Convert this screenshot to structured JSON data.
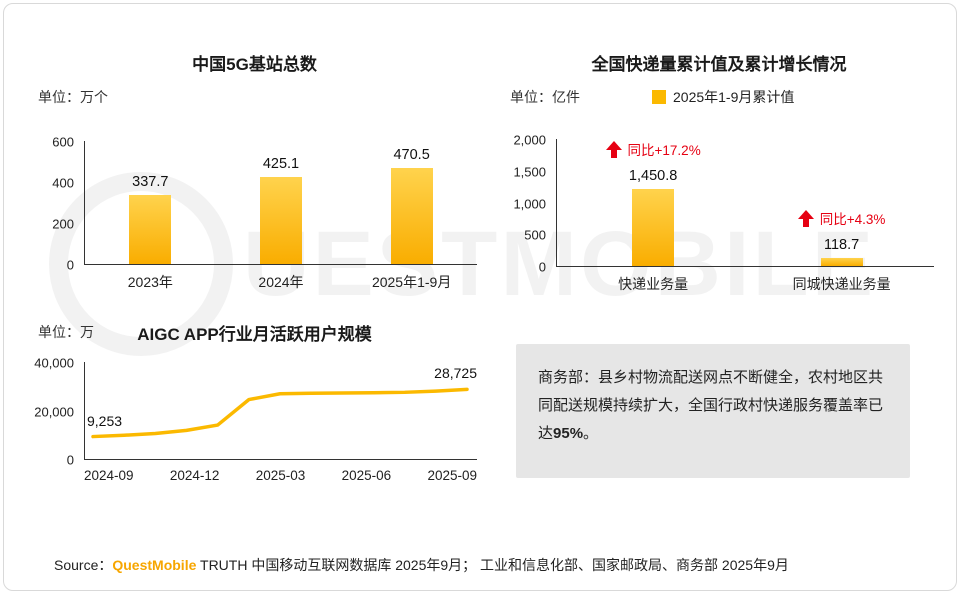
{
  "watermark": {
    "text": "QUESTMOBILE"
  },
  "colors": {
    "accent_yellow": "#FBB900",
    "bar_gradient_top": "#FFD34D",
    "bar_gradient_bottom": "#F9AD00",
    "growth_red": "#E60012",
    "brand_orange": "#F7A600",
    "quote_bg": "#E6E6E6"
  },
  "chart_data": [
    {
      "type": "bar",
      "title": "中国5G基站总数",
      "unit_label": "单位：万个",
      "categories": [
        "2023年",
        "2024年",
        "2025年1-9月"
      ],
      "values": [
        337.7,
        425.1,
        470.5
      ],
      "value_labels": [
        "337.7",
        "425.1",
        "470.5"
      ],
      "ylim": [
        0,
        600
      ],
      "yticks": [
        0,
        200,
        400,
        600
      ],
      "ytick_labels": [
        "0",
        "200",
        "400",
        "600"
      ],
      "grid": false,
      "legend_position": "none"
    },
    {
      "type": "bar",
      "title": "全国快递量累计值及累计增长情况",
      "unit_label": "单位：亿件",
      "legend": [
        {
          "label": "2025年1-9月累计值",
          "color": "#FBB900"
        }
      ],
      "categories": [
        "快递业务量",
        "同城快递业务量"
      ],
      "values": [
        1450.8,
        118.7
      ],
      "value_labels": [
        "1,450.8",
        "118.7"
      ],
      "growth_labels": [
        "同比+17.2%",
        "同比+4.3%"
      ],
      "ylim": [
        0,
        2000
      ],
      "yticks": [
        0,
        500,
        1000,
        1500,
        2000
      ],
      "ytick_labels": [
        "0",
        "500",
        "1,000",
        "1,500",
        "2,000"
      ],
      "grid": false,
      "legend_position": "top"
    },
    {
      "type": "line",
      "title": "AIGC APP行业月活跃用户规模",
      "unit_label": "单位：万",
      "x": [
        "2024-09",
        "2024-10",
        "2024-11",
        "2024-12",
        "2025-01",
        "2025-02",
        "2025-03",
        "2025-04",
        "2025-05",
        "2025-06",
        "2025-07",
        "2025-08",
        "2025-09"
      ],
      "x_tick_labels": [
        "2024-09",
        "2024-12",
        "2025-03",
        "2025-06",
        "2025-09"
      ],
      "values": [
        9253,
        9800,
        10500,
        11800,
        14000,
        24500,
        26900,
        27100,
        27200,
        27300,
        27500,
        28000,
        28725
      ],
      "endpoint_labels": {
        "first": "9,253",
        "last": "28,725"
      },
      "ylim": [
        0,
        40000
      ],
      "yticks": [
        0,
        20000,
        40000
      ],
      "ytick_labels": [
        "0",
        "20,000",
        "40,000"
      ],
      "grid": false,
      "legend_position": "none"
    }
  ],
  "quote_box": {
    "text_before": "商务部：县乡村物流配送网点不断健全，农村地区共同配送规模持续扩大，全国行政村快递服务覆盖率已达",
    "highlight": "95%",
    "text_after": "。"
  },
  "footer": {
    "source_label": "Source：",
    "brand": "QuestMobile",
    "rest": " TRUTH 中国移动互联网数据库 2025年9月； 工业和信息化部、国家邮政局、商务部 2025年9月"
  }
}
